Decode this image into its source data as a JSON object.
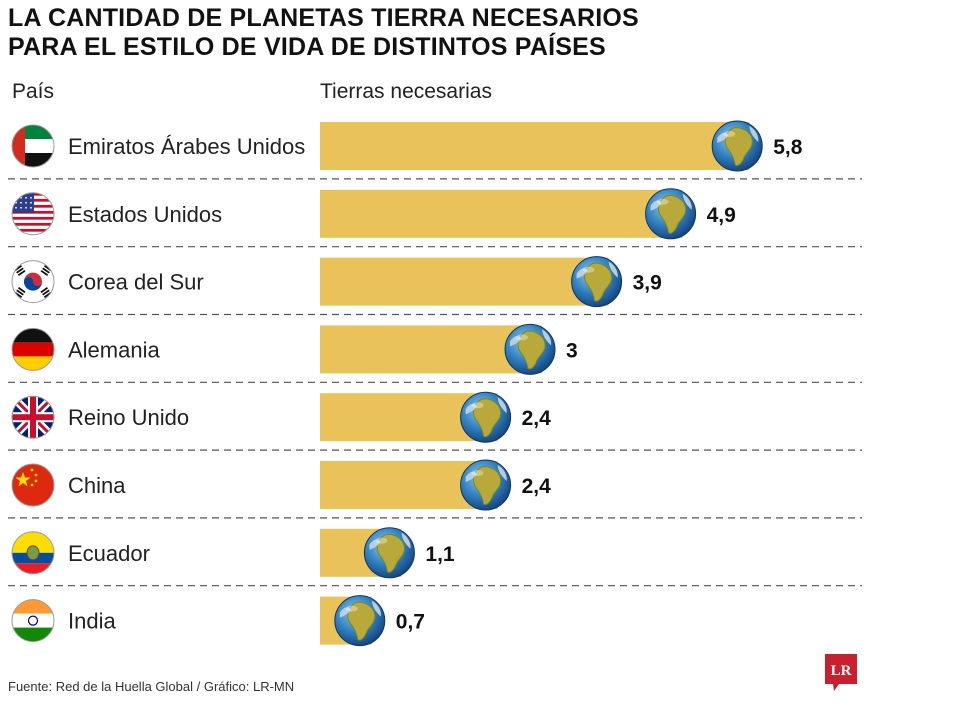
{
  "title_lines": [
    "LA CANTIDAD DE PLANETAS TIERRA NECESARIOS",
    "PARA EL ESTILO DE VIDA DE DISTINTOS PAÍSES"
  ],
  "column_headers": {
    "country": "País",
    "earths": "Tierras necesarias"
  },
  "chart_data": {
    "type": "bar",
    "orientation": "horizontal",
    "categories": [
      "Emiratos Árabes Unidos",
      "Estados Unidos",
      "Corea del Sur",
      "Alemania",
      "Reino Unido",
      "China",
      "Ecuador",
      "India"
    ],
    "values": [
      5.8,
      4.9,
      3.9,
      3,
      2.4,
      2.4,
      1.1,
      0.7
    ],
    "value_labels": [
      "5,8",
      "4,9",
      "3,9",
      "3",
      "2,4",
      "2,4",
      "1,1",
      "0,7"
    ],
    "flags": [
      "uae-flag-icon",
      "usa-flag-icon",
      "south-korea-flag-icon",
      "germany-flag-icon",
      "uk-flag-icon",
      "china-flag-icon",
      "ecuador-flag-icon",
      "india-flag-icon"
    ],
    "bar_color": "#e9c25a",
    "marker": "earth-globe-icon",
    "grid": false,
    "legend": "none"
  },
  "source": "Fuente: Red de la Huella Global / Gráfico: LR-MN",
  "logo_text": "LR",
  "logo_color": "#c8202f"
}
